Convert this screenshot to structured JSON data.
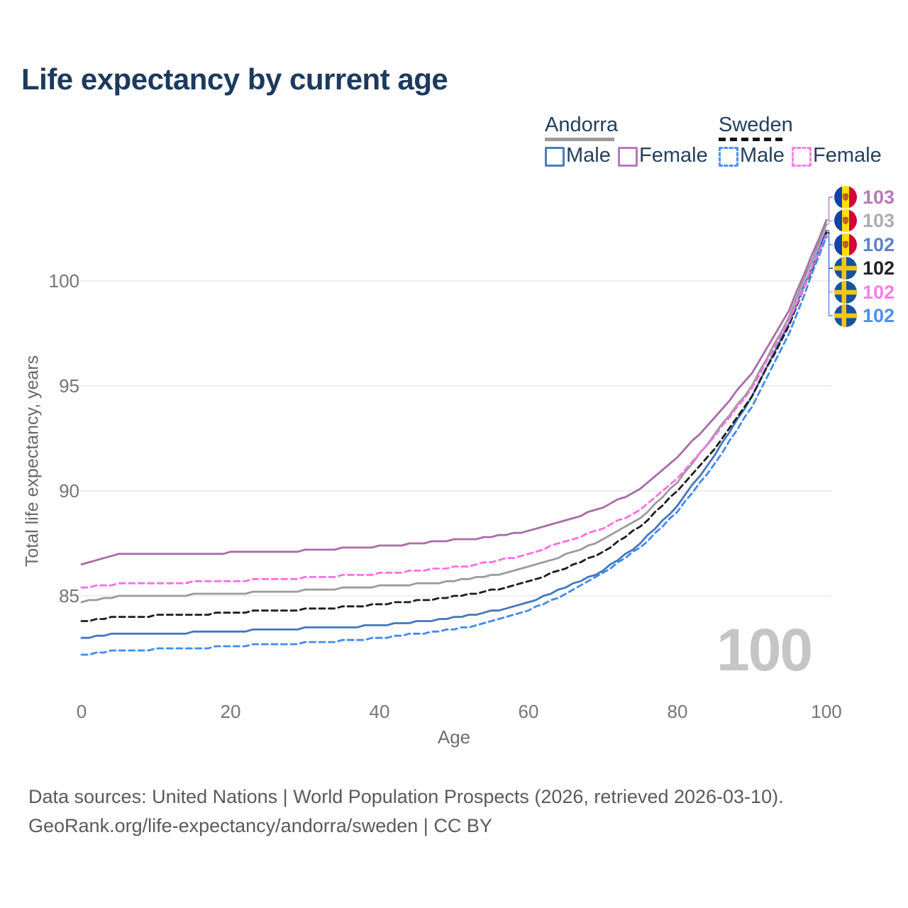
{
  "page": {
    "title": "Life expectancy by current age"
  },
  "legend": {
    "andorra": {
      "title": "Andorra",
      "male_label": "Male",
      "female_label": "Female"
    },
    "sweden": {
      "title": "Sweden",
      "male_label": "Male",
      "female_label": "Female"
    }
  },
  "watermark": {
    "current_age": "100"
  },
  "footer": {
    "line1": "Data sources: United Nations | World Population Prospects (2026, retrieved 2026-03-10).",
    "line2": "GeoRank.org/life-expectancy/andorra/sweden | CC BY"
  },
  "colors": {
    "title_text": "#1c3a5e",
    "legend_text": "#24405e",
    "andorra_underline": "#9b9b9b",
    "sweden_underline": "#151515",
    "gridline": "#e9e9e9",
    "axis_text": "#757575",
    "watermark": "#c5c5c5"
  },
  "chart_data": {
    "type": "line",
    "title": "Life expectancy by current age",
    "xlabel": "Age",
    "ylabel": "Total life expectancy, years",
    "x": [
      0,
      5,
      10,
      15,
      20,
      25,
      30,
      35,
      40,
      45,
      50,
      55,
      60,
      65,
      70,
      75,
      80,
      85,
      90,
      95,
      100
    ],
    "xlim": [
      0,
      100
    ],
    "ylim": [
      81.5,
      103.5
    ],
    "xticks": [
      0,
      20,
      40,
      60,
      80,
      100
    ],
    "yticks": [
      85,
      90,
      95,
      100
    ],
    "grid": "horizontal-only",
    "legend_position": "top-right",
    "series": [
      {
        "id": "andorra-female",
        "name": "Andorra Female",
        "country": "Andorra",
        "sex": "female",
        "style": "solid",
        "color": "#a86caa",
        "label_color": "#b47ab6",
        "flag": "andorra",
        "end_label": "103",
        "values": [
          86.5,
          86.95,
          87.0,
          87.0,
          87.05,
          87.1,
          87.15,
          87.25,
          87.35,
          87.5,
          87.65,
          87.8,
          88.1,
          88.6,
          89.2,
          90.1,
          91.6,
          93.5,
          95.6,
          98.6,
          102.9
        ]
      },
      {
        "id": "andorra-total",
        "name": "Andorra (both sexes)",
        "country": "Andorra",
        "sex": "total",
        "style": "solid",
        "color": "#9b9b9b",
        "label_color": "#adadad",
        "flag": "andorra",
        "end_label": "103",
        "values": [
          84.7,
          85.0,
          85.0,
          85.05,
          85.1,
          85.2,
          85.25,
          85.35,
          85.45,
          85.55,
          85.7,
          85.95,
          86.35,
          86.95,
          87.65,
          88.7,
          90.4,
          92.7,
          95.0,
          98.3,
          102.7
        ]
      },
      {
        "id": "andorra-male",
        "name": "Andorra Male",
        "country": "Andorra",
        "sex": "male",
        "style": "solid",
        "color": "#4477bd",
        "label_color": "#5e82cb",
        "flag": "andorra",
        "end_label": "102",
        "values": [
          83.0,
          83.2,
          83.2,
          83.25,
          83.3,
          83.4,
          83.45,
          83.5,
          83.6,
          83.75,
          83.95,
          84.25,
          84.7,
          85.4,
          86.2,
          87.5,
          89.3,
          91.7,
          94.5,
          98.0,
          102.4
        ]
      },
      {
        "id": "sweden-total",
        "name": "Sweden (both sexes)",
        "country": "Sweden",
        "sex": "total",
        "style": "dashed",
        "color": "#1d1d1d",
        "label_color": "#222222",
        "flag": "sweden",
        "end_label": "102",
        "values": [
          83.8,
          84.0,
          84.05,
          84.1,
          84.2,
          84.3,
          84.35,
          84.45,
          84.6,
          84.75,
          84.95,
          85.25,
          85.7,
          86.3,
          87.1,
          88.3,
          90.0,
          92.0,
          94.5,
          97.9,
          102.3
        ]
      },
      {
        "id": "sweden-female",
        "name": "Sweden Female",
        "country": "Sweden",
        "sex": "female",
        "style": "dashed",
        "color": "#fb6fe6",
        "label_color": "#fb7de8",
        "flag": "sweden",
        "end_label": "102",
        "values": [
          85.4,
          85.55,
          85.6,
          85.65,
          85.7,
          85.8,
          85.85,
          85.95,
          86.05,
          86.2,
          86.35,
          86.6,
          87.0,
          87.6,
          88.2,
          89.1,
          90.6,
          92.6,
          94.9,
          98.1,
          102.2
        ]
      },
      {
        "id": "sweden-male",
        "name": "Sweden Male",
        "country": "Sweden",
        "sex": "male",
        "style": "dashed",
        "color": "#3f8bf2",
        "label_color": "#4a90f2",
        "flag": "sweden",
        "end_label": "102",
        "values": [
          82.2,
          82.4,
          82.45,
          82.5,
          82.6,
          82.7,
          82.75,
          82.85,
          83.0,
          83.2,
          83.4,
          83.75,
          84.3,
          85.05,
          86.1,
          87.3,
          89.0,
          91.3,
          94.0,
          97.5,
          102.1
        ]
      }
    ]
  }
}
